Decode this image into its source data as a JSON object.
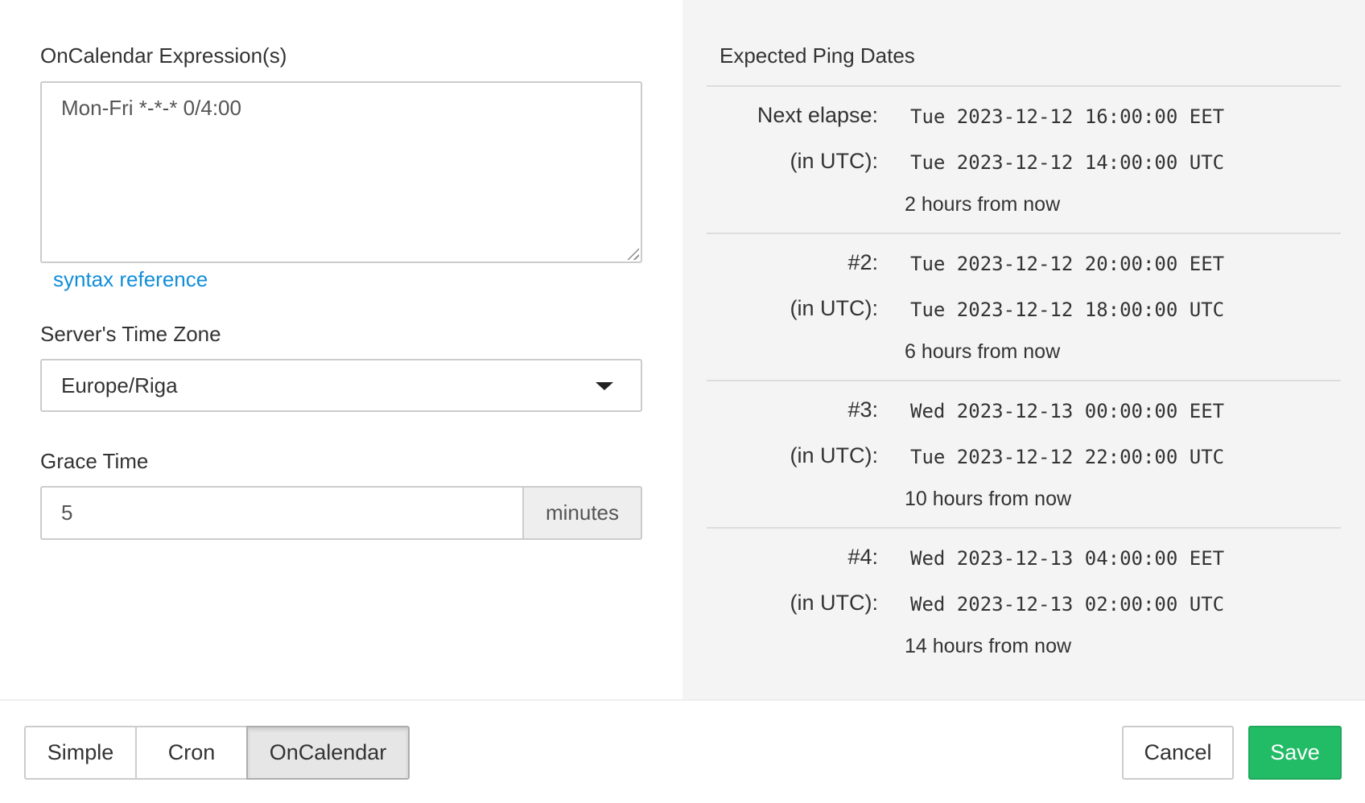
{
  "form": {
    "expression_label": "OnCalendar Expression(s)",
    "expression_value": "Mon-Fri *-*-* 0/4:00",
    "syntax_link": "syntax reference",
    "timezone_label": "Server's Time Zone",
    "timezone_value": "Europe/Riga",
    "grace_label": "Grace Time",
    "grace_value": "5",
    "grace_unit": "minutes"
  },
  "preview": {
    "title": "Expected Ping Dates",
    "entries": [
      {
        "label": "Next elapse:",
        "local": "Tue 2023-12-12 16:00:00 EET",
        "utc_label": "(in UTC):",
        "utc": "Tue 2023-12-12 14:00:00 UTC",
        "relative": "2 hours from now"
      },
      {
        "label": "#2:",
        "local": "Tue 2023-12-12 20:00:00 EET",
        "utc_label": "(in UTC):",
        "utc": "Tue 2023-12-12 18:00:00 UTC",
        "relative": "6 hours from now"
      },
      {
        "label": "#3:",
        "local": "Wed 2023-12-13 00:00:00 EET",
        "utc_label": "(in UTC):",
        "utc": "Tue 2023-12-12 22:00:00 UTC",
        "relative": "10 hours from now"
      },
      {
        "label": "#4:",
        "local": "Wed 2023-12-13 04:00:00 EET",
        "utc_label": "(in UTC):",
        "utc": "Wed 2023-12-13 02:00:00 UTC",
        "relative": "14 hours from now"
      }
    ]
  },
  "footer": {
    "modes": [
      "Simple",
      "Cron",
      "OnCalendar"
    ],
    "active_mode": "OnCalendar",
    "cancel": "Cancel",
    "save": "Save"
  },
  "colors": {
    "accent": "#22bb66",
    "link": "#118ed8",
    "panel": "#f4f4f4"
  }
}
